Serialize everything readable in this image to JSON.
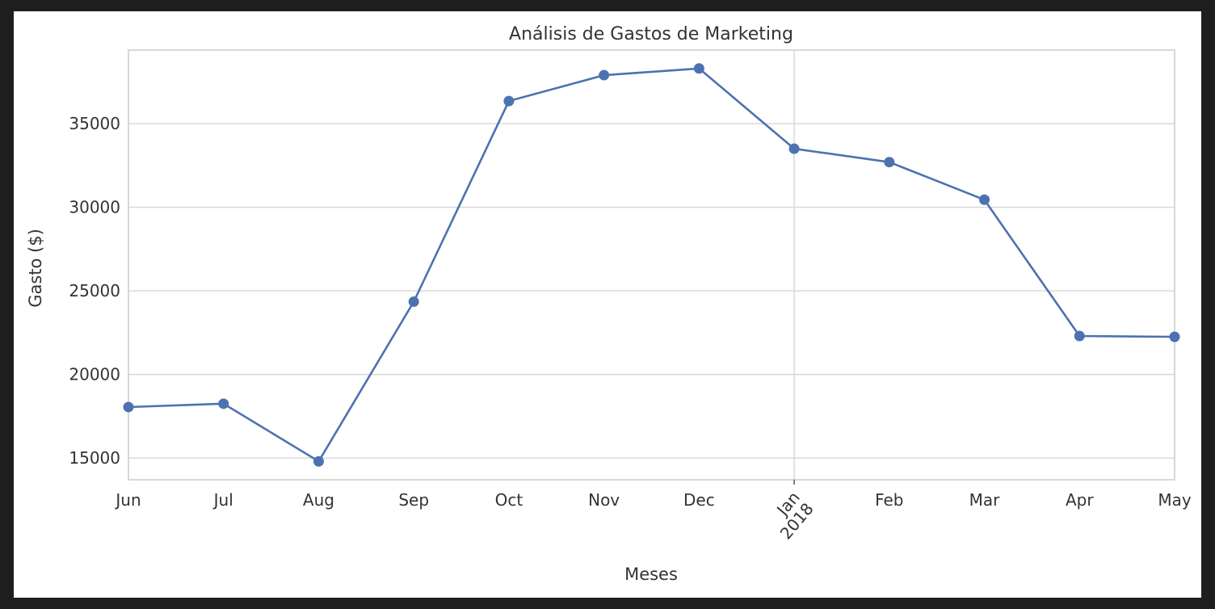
{
  "chart_data": {
    "type": "line",
    "title": "Análisis de Gastos de Marketing",
    "xlabel": "Meses",
    "ylabel": "Gasto ($)",
    "categories": [
      "Jun",
      "Jul",
      "Aug",
      "Sep",
      "Oct",
      "Nov",
      "Dec",
      "Jan\n2018",
      "Feb",
      "Mar",
      "Apr",
      "May"
    ],
    "series": [
      {
        "values": [
          18050,
          18250,
          14800,
          24350,
          36350,
          37900,
          38300,
          33500,
          32700,
          30450,
          22300,
          22250
        ]
      }
    ],
    "ylim": [
      13700,
      39400
    ],
    "yticks": [
      15000,
      20000,
      25000,
      30000,
      35000
    ],
    "grid": true,
    "line_color": "#4c72b0",
    "grid_color": "#d9d9d9"
  }
}
